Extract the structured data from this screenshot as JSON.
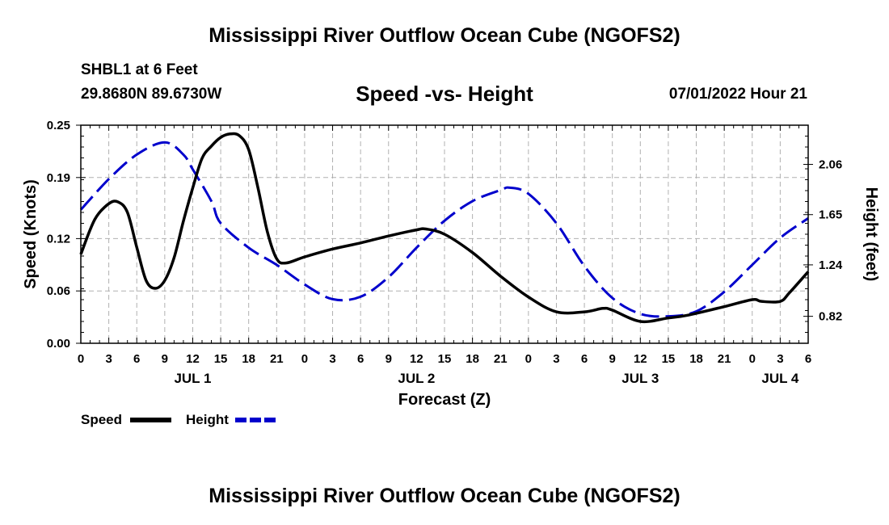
{
  "header": {
    "title": "Mississippi River Outflow Ocean Cube (NGOFS2)",
    "station": "SHBL1 at 6 Feet",
    "coordinates": "29.8680N  89.6730W",
    "chart_title": "Speed -vs- Height",
    "datetime": "07/01/2022 Hour 21"
  },
  "footer": {
    "title": "Mississippi River Outflow Ocean Cube (NGOFS2)"
  },
  "colors": {
    "speed": "#000000",
    "height": "#0000cc",
    "grid": "#b0b0b0"
  },
  "chart_data": {
    "type": "line",
    "title": "Speed -vs- Height",
    "xlabel": "Forecast (Z)",
    "ylabel": "Speed (Knots)",
    "y2label": "Height (feet)",
    "xlim": [
      0,
      78
    ],
    "ylim": [
      0,
      0.25
    ],
    "y2lim": [
      0.6,
      2.38
    ],
    "grid": true,
    "x_ticks": [
      0,
      3,
      6,
      9,
      12,
      15,
      18,
      21,
      24,
      27,
      30,
      33,
      36,
      39,
      42,
      45,
      48,
      51,
      54,
      57,
      60,
      63,
      66,
      69,
      72,
      75,
      78
    ],
    "x_tick_labels": [
      "0",
      "3",
      "6",
      "9",
      "12",
      "15",
      "18",
      "21",
      "0",
      "3",
      "6",
      "9",
      "12",
      "15",
      "18",
      "21",
      "0",
      "3",
      "6",
      "9",
      "12",
      "15",
      "18",
      "21",
      "0",
      "3",
      "6"
    ],
    "day_labels": [
      {
        "hour": 12,
        "label": "JUL 1"
      },
      {
        "hour": 36,
        "label": "JUL 2"
      },
      {
        "hour": 60,
        "label": "JUL 3"
      },
      {
        "hour": 75,
        "label": "JUL 4"
      }
    ],
    "y_ticks": [
      0.0,
      0.06,
      0.12,
      0.19,
      0.25
    ],
    "y_tick_labels": [
      "0.00",
      "0.06",
      "0.12",
      "0.19",
      "0.25"
    ],
    "y2_ticks": [
      0.82,
      1.24,
      1.65,
      2.06
    ],
    "y2_tick_labels": [
      "0.82",
      "1.24",
      "1.65",
      "2.06"
    ],
    "legend": {
      "placement": "bottom-left",
      "entries": [
        {
          "label": "Speed",
          "style": "solid"
        },
        {
          "label": "Height",
          "style": "dashed"
        }
      ]
    },
    "series": [
      {
        "name": "Speed",
        "axis": "left",
        "style": "solid",
        "x": [
          0,
          1.5,
          3,
          4,
          5,
          6,
          7,
          8,
          9,
          10,
          11,
          12,
          13,
          14,
          15,
          16,
          17,
          18,
          19,
          20,
          21,
          22,
          24,
          27,
          30,
          33,
          36,
          37,
          39,
          42,
          45,
          48,
          51,
          54,
          56,
          57,
          60,
          63,
          65,
          69,
          72,
          73,
          75,
          76,
          78
        ],
        "values": [
          0.102,
          0.142,
          0.16,
          0.162,
          0.15,
          0.11,
          0.072,
          0.063,
          0.072,
          0.098,
          0.14,
          0.178,
          0.212,
          0.226,
          0.236,
          0.24,
          0.238,
          0.222,
          0.178,
          0.128,
          0.097,
          0.092,
          0.099,
          0.108,
          0.115,
          0.123,
          0.13,
          0.131,
          0.125,
          0.104,
          0.077,
          0.053,
          0.036,
          0.036,
          0.04,
          0.038,
          0.025,
          0.029,
          0.032,
          0.042,
          0.05,
          0.048,
          0.048,
          0.058,
          0.082
        ]
      },
      {
        "name": "Height",
        "axis": "right",
        "style": "dashed",
        "x": [
          0,
          3,
          6,
          9,
          11,
          12,
          14,
          15,
          18,
          21,
          24,
          27,
          30,
          33,
          36,
          39,
          42,
          45,
          46,
          48,
          51,
          54,
          57,
          60,
          63,
          66,
          69,
          72,
          75,
          78
        ],
        "values": [
          1.69,
          1.94,
          2.14,
          2.24,
          2.14,
          2.02,
          1.76,
          1.58,
          1.38,
          1.24,
          1.08,
          0.96,
          0.98,
          1.14,
          1.38,
          1.6,
          1.76,
          1.85,
          1.87,
          1.82,
          1.58,
          1.23,
          0.97,
          0.84,
          0.82,
          0.86,
          1.02,
          1.24,
          1.46,
          1.62
        ]
      }
    ]
  }
}
